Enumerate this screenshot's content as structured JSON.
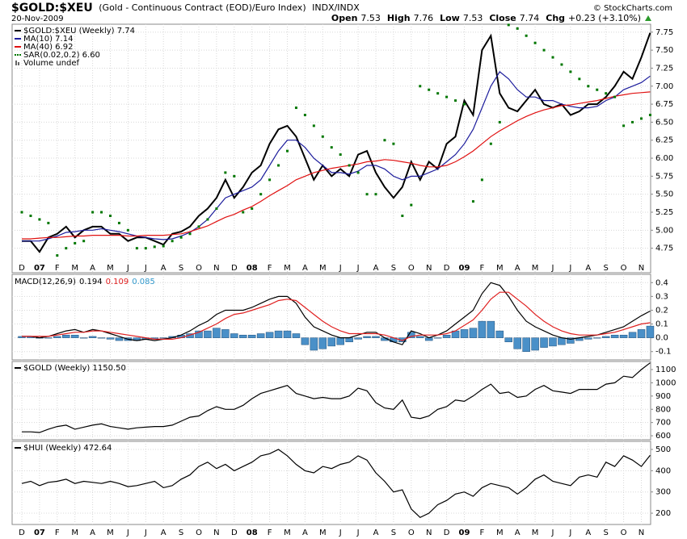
{
  "header": {
    "symbol": "$GOLD:$XEU",
    "description": "(Gold - Continuous Contract (EOD)/Euro Index)",
    "exchange": "INDX/INDX",
    "date": "20-Nov-2009",
    "quote": [
      {
        "label": "Open",
        "value": 7.53
      },
      {
        "label": "High",
        "value": 7.76
      },
      {
        "label": "Low",
        "value": 7.53
      },
      {
        "label": "Close",
        "value": 7.74
      }
    ],
    "change_label": "Chg",
    "change": "+0.23 (+3.10%)",
    "credit": "© StockCharts.com"
  },
  "chart_data": [
    {
      "type": "line",
      "categories": [
        "D",
        null,
        "07",
        null,
        "F",
        null,
        "M",
        null,
        "A",
        null,
        "M",
        null,
        "J",
        null,
        "J",
        null,
        "A",
        null,
        "S",
        null,
        "O",
        null,
        "N",
        null,
        "D",
        null,
        "08",
        null,
        "F",
        null,
        "M",
        null,
        "A",
        null,
        "M",
        null,
        "J",
        null,
        "J",
        null,
        "A",
        null,
        "S",
        null,
        "O",
        null,
        "N",
        null,
        "D",
        null,
        "09",
        null,
        "F",
        null,
        "M",
        null,
        "A",
        null,
        "M",
        null,
        "J",
        null,
        "J",
        null,
        "A",
        null,
        "S",
        null,
        "O",
        null,
        "N",
        null
      ],
      "ylim": [
        4.41,
        7.86
      ],
      "yticks": [
        4.75,
        {
          "value": 5,
          "label": "5.00"
        },
        5.25,
        {
          "value": 5.5,
          "label": "5.50"
        },
        5.75,
        {
          "value": 6,
          "label": "6.00"
        },
        6.25,
        {
          "value": 6.5,
          "label": "6.50"
        },
        6.75,
        {
          "value": 7,
          "label": "7.00"
        },
        7.25,
        {
          "value": 7.5,
          "label": "7.50"
        },
        7.75
      ],
      "grid": true,
      "series": [
        {
          "name": "$GOLD:$XEU (Weekly) 7.74",
          "type": "line",
          "color": "#000000",
          "values": [
            4.85,
            4.85,
            4.7,
            4.9,
            4.95,
            5.05,
            4.9,
            5.0,
            5.05,
            5.05,
            4.95,
            4.95,
            4.85,
            4.9,
            4.9,
            4.85,
            4.8,
            4.95,
            4.98,
            5.05,
            5.2,
            5.3,
            5.45,
            5.7,
            5.45,
            5.6,
            5.8,
            5.9,
            6.2,
            6.4,
            6.45,
            6.3,
            6.0,
            5.7,
            5.9,
            5.75,
            5.85,
            5.75,
            6.05,
            6.1,
            5.8,
            5.6,
            5.45,
            5.6,
            5.95,
            5.7,
            5.95,
            5.85,
            6.2,
            6.3,
            6.8,
            6.6,
            7.5,
            7.7,
            6.9,
            6.7,
            6.65,
            6.8,
            6.95,
            6.75,
            6.7,
            6.75,
            6.6,
            6.65,
            6.75,
            6.75,
            6.85,
            7.0,
            7.2,
            7.1,
            7.4,
            7.74
          ]
        },
        {
          "name": "MA(10) 7.14",
          "type": "line",
          "color": "#1c1c9c",
          "values": [
            4.85,
            4.85,
            4.85,
            4.88,
            4.92,
            4.97,
            4.98,
            5.0,
            5.0,
            5.02,
            5.0,
            4.98,
            4.95,
            4.92,
            4.9,
            4.88,
            4.87,
            4.88,
            4.92,
            4.97,
            5.05,
            5.15,
            5.3,
            5.45,
            5.5,
            5.55,
            5.6,
            5.7,
            5.9,
            6.1,
            6.25,
            6.25,
            6.15,
            6.0,
            5.9,
            5.8,
            5.8,
            5.78,
            5.82,
            5.9,
            5.9,
            5.85,
            5.75,
            5.7,
            5.75,
            5.75,
            5.8,
            5.85,
            5.95,
            6.05,
            6.2,
            6.4,
            6.7,
            7.0,
            7.2,
            7.1,
            6.95,
            6.85,
            6.85,
            6.8,
            6.8,
            6.75,
            6.72,
            6.7,
            6.7,
            6.72,
            6.8,
            6.85,
            6.95,
            7.0,
            7.05,
            7.14
          ]
        },
        {
          "name": "MA(40) 6.92",
          "type": "line",
          "color": "#e01010",
          "values": [
            4.88,
            4.88,
            4.89,
            4.9,
            4.9,
            4.91,
            4.92,
            4.92,
            4.93,
            4.93,
            4.93,
            4.93,
            4.92,
            4.92,
            4.93,
            4.93,
            4.93,
            4.94,
            4.95,
            4.98,
            5.02,
            5.06,
            5.12,
            5.18,
            5.22,
            5.28,
            5.33,
            5.4,
            5.48,
            5.55,
            5.62,
            5.7,
            5.75,
            5.8,
            5.83,
            5.86,
            5.88,
            5.9,
            5.92,
            5.95,
            5.96,
            5.98,
            5.97,
            5.95,
            5.93,
            5.9,
            5.88,
            5.88,
            5.9,
            5.95,
            6.02,
            6.1,
            6.2,
            6.3,
            6.38,
            6.45,
            6.52,
            6.58,
            6.63,
            6.67,
            6.7,
            6.73,
            6.74,
            6.76,
            6.78,
            6.8,
            6.83,
            6.86,
            6.88,
            6.9,
            6.91,
            6.92
          ]
        },
        {
          "name": "SAR(0.02,0.2) 6.60",
          "type": "dots",
          "color": "#007700",
          "values": [
            5.25,
            5.2,
            5.15,
            5.1,
            4.65,
            4.75,
            4.82,
            4.85,
            5.25,
            5.25,
            5.2,
            5.1,
            5.0,
            4.75,
            4.75,
            4.77,
            4.78,
            4.85,
            4.9,
            4.95,
            5.05,
            5.15,
            5.3,
            5.8,
            5.75,
            5.25,
            5.3,
            5.5,
            5.7,
            5.9,
            6.1,
            6.7,
            6.6,
            6.45,
            6.3,
            6.15,
            6.05,
            5.9,
            5.8,
            5.5,
            5.5,
            6.25,
            6.2,
            5.2,
            5.35,
            7.0,
            6.95,
            6.9,
            6.85,
            6.8,
            6.75,
            5.4,
            5.7,
            6.2,
            6.5,
            7.85,
            7.8,
            7.7,
            7.6,
            7.5,
            7.4,
            7.3,
            7.2,
            7.1,
            7.0,
            6.95,
            6.9,
            6.85,
            6.45,
            6.5,
            6.55,
            6.6
          ]
        }
      ],
      "volume_label": "Volume undef"
    },
    {
      "type": "line",
      "label": "MACD(12,26,9)",
      "ylim": [
        -0.16,
        0.46
      ],
      "yticks": [
        -0.1,
        {
          "value": 0,
          "label": "0.0"
        },
        0.1,
        0.2,
        0.3,
        0.4
      ],
      "grid": true,
      "series": [
        {
          "name": "0.085",
          "type": "bar",
          "color": "#4a90c8",
          "values": [
            0.01,
            0.01,
            0.0,
            0.0,
            0.01,
            0.02,
            0.02,
            0.0,
            0.01,
            0.0,
            -0.01,
            -0.02,
            -0.02,
            -0.02,
            -0.01,
            -0.01,
            0.0,
            0.01,
            0.02,
            0.03,
            0.05,
            0.05,
            0.07,
            0.06,
            0.03,
            0.02,
            0.02,
            0.03,
            0.04,
            0.05,
            0.05,
            0.03,
            -0.05,
            -0.09,
            -0.08,
            -0.06,
            -0.05,
            -0.03,
            -0.01,
            0.01,
            0.01,
            -0.02,
            -0.03,
            -0.03,
            0.04,
            0.01,
            -0.02,
            0.0,
            0.02,
            0.05,
            0.06,
            0.07,
            0.12,
            0.12,
            0.05,
            -0.03,
            -0.08,
            -0.1,
            -0.09,
            -0.07,
            -0.06,
            -0.05,
            -0.04,
            -0.02,
            -0.01,
            0.0,
            0.01,
            0.02,
            0.02,
            0.04,
            0.06,
            0.085
          ]
        },
        {
          "name": "0.194",
          "type": "line",
          "color": "#000000",
          "values": [
            0.01,
            0.01,
            0.0,
            0.01,
            0.03,
            0.05,
            0.06,
            0.04,
            0.06,
            0.05,
            0.03,
            0.01,
            -0.01,
            -0.02,
            -0.01,
            -0.02,
            -0.01,
            0.0,
            0.02,
            0.05,
            0.09,
            0.12,
            0.17,
            0.2,
            0.2,
            0.2,
            0.22,
            0.25,
            0.28,
            0.3,
            0.3,
            0.25,
            0.15,
            0.08,
            0.05,
            0.02,
            0.0,
            0.0,
            0.02,
            0.04,
            0.04,
            0.0,
            -0.03,
            -0.05,
            0.05,
            0.03,
            0.0,
            0.02,
            0.05,
            0.1,
            0.15,
            0.2,
            0.32,
            0.4,
            0.38,
            0.3,
            0.2,
            0.12,
            0.08,
            0.05,
            0.02,
            0.0,
            -0.01,
            0.0,
            0.01,
            0.02,
            0.04,
            0.06,
            0.08,
            0.12,
            0.16,
            0.194
          ]
        },
        {
          "name": "0.109",
          "type": "line",
          "color": "#e02020",
          "values": [
            0.01,
            0.01,
            0.01,
            0.01,
            0.02,
            0.03,
            0.04,
            0.04,
            0.05,
            0.05,
            0.04,
            0.03,
            0.02,
            0.01,
            0.0,
            -0.01,
            -0.01,
            -0.01,
            0.0,
            0.02,
            0.04,
            0.07,
            0.1,
            0.14,
            0.17,
            0.18,
            0.2,
            0.22,
            0.24,
            0.27,
            0.28,
            0.27,
            0.22,
            0.17,
            0.12,
            0.08,
            0.05,
            0.03,
            0.03,
            0.03,
            0.03,
            0.02,
            0.0,
            -0.02,
            0.01,
            0.02,
            0.02,
            0.02,
            0.03,
            0.05,
            0.09,
            0.13,
            0.2,
            0.28,
            0.33,
            0.33,
            0.28,
            0.23,
            0.17,
            0.12,
            0.08,
            0.05,
            0.03,
            0.02,
            0.02,
            0.02,
            0.03,
            0.04,
            0.06,
            0.08,
            0.1,
            0.109
          ]
        }
      ]
    },
    {
      "type": "line",
      "ylim": [
        570,
        1161
      ],
      "yticks": [
        600,
        700,
        800,
        900,
        1000,
        1100
      ],
      "grid": true,
      "series": [
        {
          "name": "$GOLD (Weekly) 1150.50",
          "type": "line",
          "color": "#000000",
          "values": [
            630,
            630,
            625,
            650,
            670,
            680,
            650,
            665,
            680,
            690,
            670,
            660,
            650,
            660,
            665,
            670,
            670,
            680,
            710,
            740,
            750,
            790,
            820,
            800,
            800,
            830,
            880,
            920,
            940,
            960,
            980,
            920,
            900,
            880,
            890,
            880,
            880,
            900,
            960,
            940,
            850,
            810,
            800,
            870,
            740,
            730,
            750,
            800,
            820,
            870,
            860,
            900,
            950,
            990,
            920,
            930,
            890,
            900,
            950,
            980,
            940,
            930,
            920,
            950,
            950,
            950,
            990,
            1000,
            1050,
            1040,
            1100,
            1150.5
          ]
        }
      ]
    },
    {
      "type": "line",
      "categories": [
        "D",
        null,
        "07",
        null,
        "F",
        null,
        "M",
        null,
        "A",
        null,
        "M",
        null,
        "J",
        null,
        "J",
        null,
        "A",
        null,
        "S",
        null,
        "O",
        null,
        "N",
        null,
        "D",
        null,
        "08",
        null,
        "F",
        null,
        "M",
        null,
        "A",
        null,
        "M",
        null,
        "J",
        null,
        "J",
        null,
        "A",
        null,
        "S",
        null,
        "O",
        null,
        "N",
        null,
        "D",
        null,
        "09",
        null,
        "F",
        null,
        "M",
        null,
        "A",
        null,
        "M",
        null,
        "J",
        null,
        "J",
        null,
        "A",
        null,
        "S",
        null,
        "O",
        null,
        "N",
        null
      ],
      "ylim": [
        147,
        538
      ],
      "yticks": [
        200,
        300,
        400,
        500
      ],
      "grid": true,
      "series": [
        {
          "name": "$HUI (Weekly) 472.64",
          "type": "line",
          "color": "#000000",
          "values": [
            340,
            350,
            330,
            345,
            350,
            360,
            340,
            350,
            345,
            340,
            350,
            340,
            325,
            330,
            340,
            350,
            320,
            330,
            360,
            380,
            420,
            440,
            410,
            430,
            400,
            420,
            440,
            470,
            480,
            500,
            470,
            430,
            400,
            390,
            420,
            410,
            430,
            440,
            470,
            450,
            390,
            350,
            300,
            310,
            220,
            180,
            200,
            240,
            260,
            290,
            300,
            280,
            320,
            340,
            330,
            320,
            290,
            320,
            360,
            380,
            350,
            340,
            330,
            370,
            380,
            370,
            440,
            420,
            470,
            450,
            420,
            472.64
          ]
        }
      ]
    }
  ]
}
